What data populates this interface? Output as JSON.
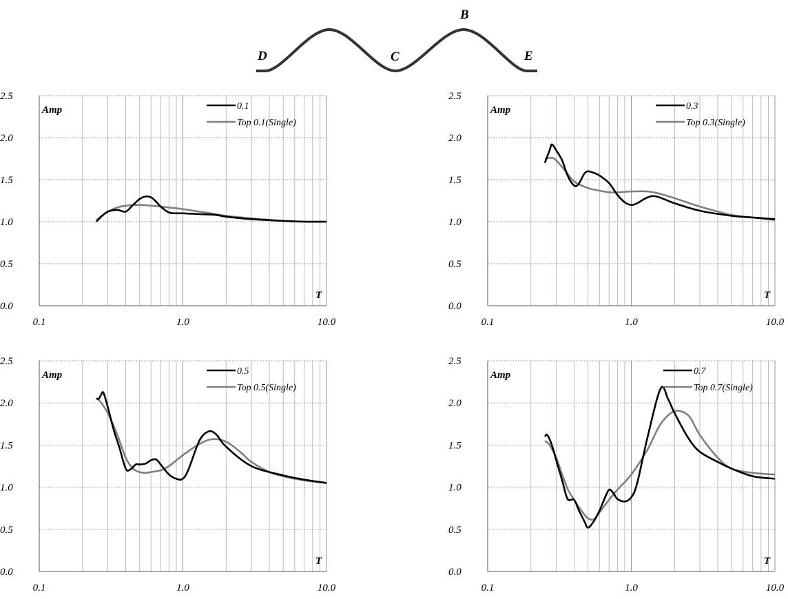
{
  "profile": {
    "labels": {
      "D": "D",
      "C": "C",
      "B": "B",
      "E": "E"
    }
  },
  "colors": {
    "series_1": "#000000",
    "series_2": "#7f7f7f",
    "grid": "#b4b4b4",
    "hgrid": "#9a9a9a"
  },
  "chart_data": [
    {
      "type": "line",
      "xscale": "log",
      "xlim": [
        0.1,
        10.0
      ],
      "ylim": [
        0.0,
        2.5
      ],
      "x_ticks": [
        "0.1",
        "1.0",
        "10.0"
      ],
      "y_ticks": [
        "0.0",
        "0.5",
        "1.0",
        "1.5",
        "2.0",
        "2.5"
      ],
      "ylabel": "Amp",
      "xlabel": "T",
      "grid": "vertical log minor + horizontal major dashed",
      "legend": "top-right",
      "series": [
        {
          "name": "0.1",
          "x": [
            0.25,
            0.27,
            0.3,
            0.35,
            0.4,
            0.45,
            0.5,
            0.55,
            0.6,
            0.65,
            0.7,
            0.8,
            0.9,
            1.0,
            1.3,
            1.7,
            2.0,
            3.0,
            5.0,
            7.0,
            10.0
          ],
          "y": [
            1.0,
            1.06,
            1.12,
            1.14,
            1.12,
            1.2,
            1.27,
            1.3,
            1.29,
            1.24,
            1.18,
            1.11,
            1.1,
            1.1,
            1.09,
            1.08,
            1.06,
            1.03,
            1.01,
            1.0,
            1.0
          ]
        },
        {
          "name": "Top 0.1(Single)",
          "x": [
            0.25,
            0.3,
            0.35,
            0.4,
            0.5,
            0.6,
            0.7,
            0.8,
            1.0,
            1.3,
            1.7,
            2.0,
            3.0,
            5.0,
            7.0,
            10.0
          ],
          "y": [
            1.02,
            1.12,
            1.17,
            1.19,
            1.2,
            1.19,
            1.18,
            1.17,
            1.15,
            1.12,
            1.09,
            1.07,
            1.04,
            1.01,
            1.0,
            1.0
          ]
        }
      ]
    },
    {
      "type": "line",
      "xscale": "log",
      "xlim": [
        0.1,
        10.0
      ],
      "ylim": [
        0.0,
        2.5
      ],
      "x_ticks": [
        "0.1",
        "1.0",
        "10.0"
      ],
      "y_ticks": [
        "0.0",
        "0.5",
        "1.0",
        "1.5",
        "2.0",
        "2.5"
      ],
      "ylabel": "Amp",
      "xlabel": "T",
      "grid": "vertical log minor + horizontal major dashed",
      "legend": "top-right",
      "series": [
        {
          "name": "0.3",
          "x": [
            0.25,
            0.27,
            0.28,
            0.3,
            0.33,
            0.36,
            0.4,
            0.43,
            0.47,
            0.5,
            0.55,
            0.6,
            0.7,
            0.8,
            0.9,
            1.0,
            1.1,
            1.3,
            1.5,
            2.0,
            3.0,
            5.0,
            7.0,
            10.0
          ],
          "y": [
            1.7,
            1.85,
            1.92,
            1.85,
            1.73,
            1.55,
            1.43,
            1.45,
            1.57,
            1.6,
            1.58,
            1.55,
            1.46,
            1.32,
            1.23,
            1.2,
            1.22,
            1.29,
            1.3,
            1.22,
            1.13,
            1.07,
            1.05,
            1.03
          ]
        },
        {
          "name": "Top 0.3(Single)",
          "x": [
            0.25,
            0.28,
            0.3,
            0.35,
            0.4,
            0.5,
            0.6,
            0.7,
            0.8,
            1.0,
            1.3,
            1.6,
            2.0,
            3.0,
            5.0,
            7.0,
            10.0
          ],
          "y": [
            1.75,
            1.76,
            1.73,
            1.6,
            1.48,
            1.4,
            1.37,
            1.35,
            1.35,
            1.36,
            1.36,
            1.33,
            1.28,
            1.18,
            1.08,
            1.05,
            1.02
          ]
        }
      ]
    },
    {
      "type": "line",
      "xscale": "log",
      "xlim": [
        0.1,
        10.0
      ],
      "ylim": [
        0.0,
        2.5
      ],
      "x_ticks": [
        "0.1",
        "1.0",
        "10.0"
      ],
      "y_ticks": [
        "0.0",
        "0.5",
        "1.0",
        "1.5",
        "2.0",
        "2.5"
      ],
      "ylabel": "Amp",
      "xlabel": "T",
      "grid": "vertical log minor + horizontal major dashed",
      "legend": "top-right",
      "series": [
        {
          "name": "0.5",
          "x": [
            0.25,
            0.26,
            0.27,
            0.28,
            0.3,
            0.33,
            0.36,
            0.4,
            0.43,
            0.47,
            0.5,
            0.55,
            0.6,
            0.65,
            0.7,
            0.8,
            0.9,
            1.0,
            1.1,
            1.3,
            1.5,
            1.7,
            2.0,
            3.0,
            5.0,
            7.0,
            10.0
          ],
          "y": [
            2.05,
            2.05,
            2.1,
            2.12,
            1.95,
            1.68,
            1.48,
            1.22,
            1.21,
            1.27,
            1.27,
            1.28,
            1.32,
            1.33,
            1.27,
            1.15,
            1.1,
            1.1,
            1.22,
            1.55,
            1.66,
            1.63,
            1.48,
            1.25,
            1.14,
            1.09,
            1.05
          ]
        },
        {
          "name": "Top 0.5(Single)",
          "x": [
            0.25,
            0.27,
            0.3,
            0.35,
            0.4,
            0.45,
            0.5,
            0.55,
            0.6,
            0.7,
            0.8,
            1.0,
            1.3,
            1.6,
            2.0,
            2.5,
            3.0,
            4.0,
            5.0,
            7.0,
            10.0
          ],
          "y": [
            2.06,
            2.0,
            1.88,
            1.62,
            1.35,
            1.22,
            1.18,
            1.17,
            1.18,
            1.2,
            1.25,
            1.38,
            1.51,
            1.57,
            1.54,
            1.42,
            1.3,
            1.18,
            1.13,
            1.08,
            1.05
          ]
        }
      ]
    },
    {
      "type": "line",
      "xscale": "log",
      "xlim": [
        0.1,
        10.0
      ],
      "ylim": [
        0.0,
        2.5
      ],
      "x_ticks": [
        "0.1",
        "1.0",
        "10.0"
      ],
      "y_ticks": [
        "0.0",
        "0.5",
        "1.0",
        "1.5",
        "2.0",
        "2.5"
      ],
      "ylabel": "Amp",
      "xlabel": "T",
      "grid": "vertical log minor + horizontal major dashed",
      "legend": "top-right",
      "series": [
        {
          "name": "0.7",
          "x": [
            0.25,
            0.26,
            0.28,
            0.3,
            0.33,
            0.36,
            0.4,
            0.43,
            0.47,
            0.5,
            0.55,
            0.6,
            0.65,
            0.7,
            0.75,
            0.8,
            0.9,
            1.0,
            1.1,
            1.3,
            1.6,
            1.8,
            2.0,
            2.5,
            3.0,
            4.0,
            5.0,
            7.0,
            10.0
          ],
          "y": [
            1.6,
            1.62,
            1.5,
            1.32,
            1.08,
            0.86,
            0.85,
            0.73,
            0.6,
            0.52,
            0.6,
            0.72,
            0.86,
            0.97,
            0.93,
            0.86,
            0.83,
            0.88,
            1.05,
            1.6,
            2.17,
            2.05,
            1.88,
            1.58,
            1.42,
            1.3,
            1.22,
            1.13,
            1.1
          ]
        },
        {
          "name": "Top 0.7(Single)",
          "x": [
            0.25,
            0.27,
            0.3,
            0.33,
            0.36,
            0.4,
            0.45,
            0.5,
            0.55,
            0.6,
            0.7,
            0.8,
            1.0,
            1.3,
            1.6,
            2.0,
            2.5,
            3.0,
            4.0,
            5.0,
            7.0,
            10.0
          ],
          "y": [
            1.55,
            1.5,
            1.35,
            1.15,
            0.98,
            0.85,
            0.72,
            0.63,
            0.62,
            0.7,
            0.85,
            0.97,
            1.15,
            1.45,
            1.75,
            1.9,
            1.85,
            1.62,
            1.35,
            1.22,
            1.17,
            1.15
          ]
        }
      ]
    }
  ]
}
